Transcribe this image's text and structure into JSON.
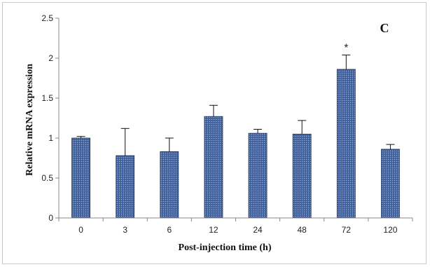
{
  "chart_data": {
    "type": "bar",
    "panel_label": "C",
    "xlabel": "Post-injection time (h)",
    "ylabel": "Relative mRNA expression",
    "categories": [
      "0",
      "3",
      "6",
      "12",
      "24",
      "48",
      "72",
      "120"
    ],
    "values": [
      1.0,
      0.78,
      0.83,
      1.27,
      1.06,
      1.05,
      1.86,
      0.86
    ],
    "error": [
      0.02,
      0.34,
      0.17,
      0.14,
      0.05,
      0.17,
      0.18,
      0.06
    ],
    "significance": [
      "",
      "",
      "",
      "",
      "",
      "",
      "*",
      ""
    ],
    "ylim": [
      0,
      2.5
    ],
    "yticks": [
      "0",
      "0.5",
      "1",
      "1.5",
      "2",
      "2.5"
    ],
    "grid": false,
    "colors": {
      "bar_fill": "#3f5f9c",
      "bar_pattern": "#9fb3d6",
      "bar_stroke": "#1e2f52",
      "axis": "#8a8a8a"
    }
  }
}
